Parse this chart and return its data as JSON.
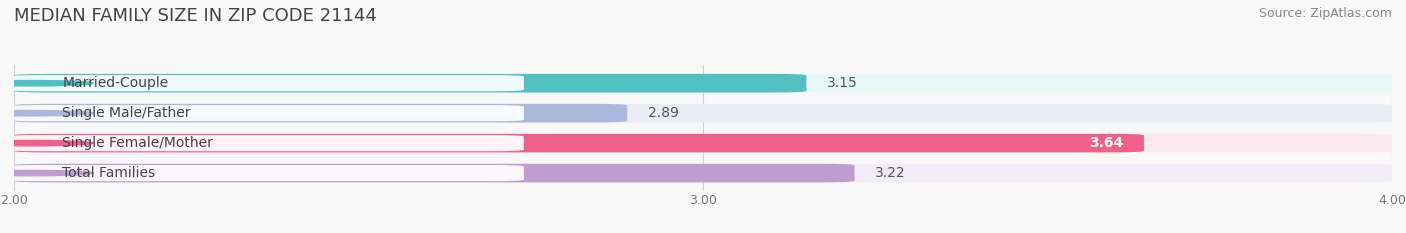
{
  "title": "MEDIAN FAMILY SIZE IN ZIP CODE 21144",
  "source": "Source: ZipAtlas.com",
  "categories": [
    "Married-Couple",
    "Single Male/Father",
    "Single Female/Mother",
    "Total Families"
  ],
  "values": [
    3.15,
    2.89,
    3.64,
    3.22
  ],
  "bar_colors": [
    "#52bfc1",
    "#aab8dc",
    "#f0608a",
    "#bf9ecf"
  ],
  "bar_bg_colors": [
    "#e8f7f7",
    "#eaedf6",
    "#fce8ef",
    "#f2ecf8"
  ],
  "value_inside": [
    false,
    false,
    true,
    false
  ],
  "xlim": [
    2.0,
    4.0
  ],
  "xticks": [
    2.0,
    3.0,
    4.0
  ],
  "xtick_labels": [
    "2.00",
    "3.00",
    "4.00"
  ],
  "bar_height": 0.62,
  "title_fontsize": 13,
  "source_fontsize": 9,
  "label_fontsize": 10,
  "value_fontsize": 10,
  "tick_fontsize": 9,
  "figsize": [
    14.06,
    2.33
  ],
  "dpi": 100,
  "bg_color": "#f8f8f8"
}
